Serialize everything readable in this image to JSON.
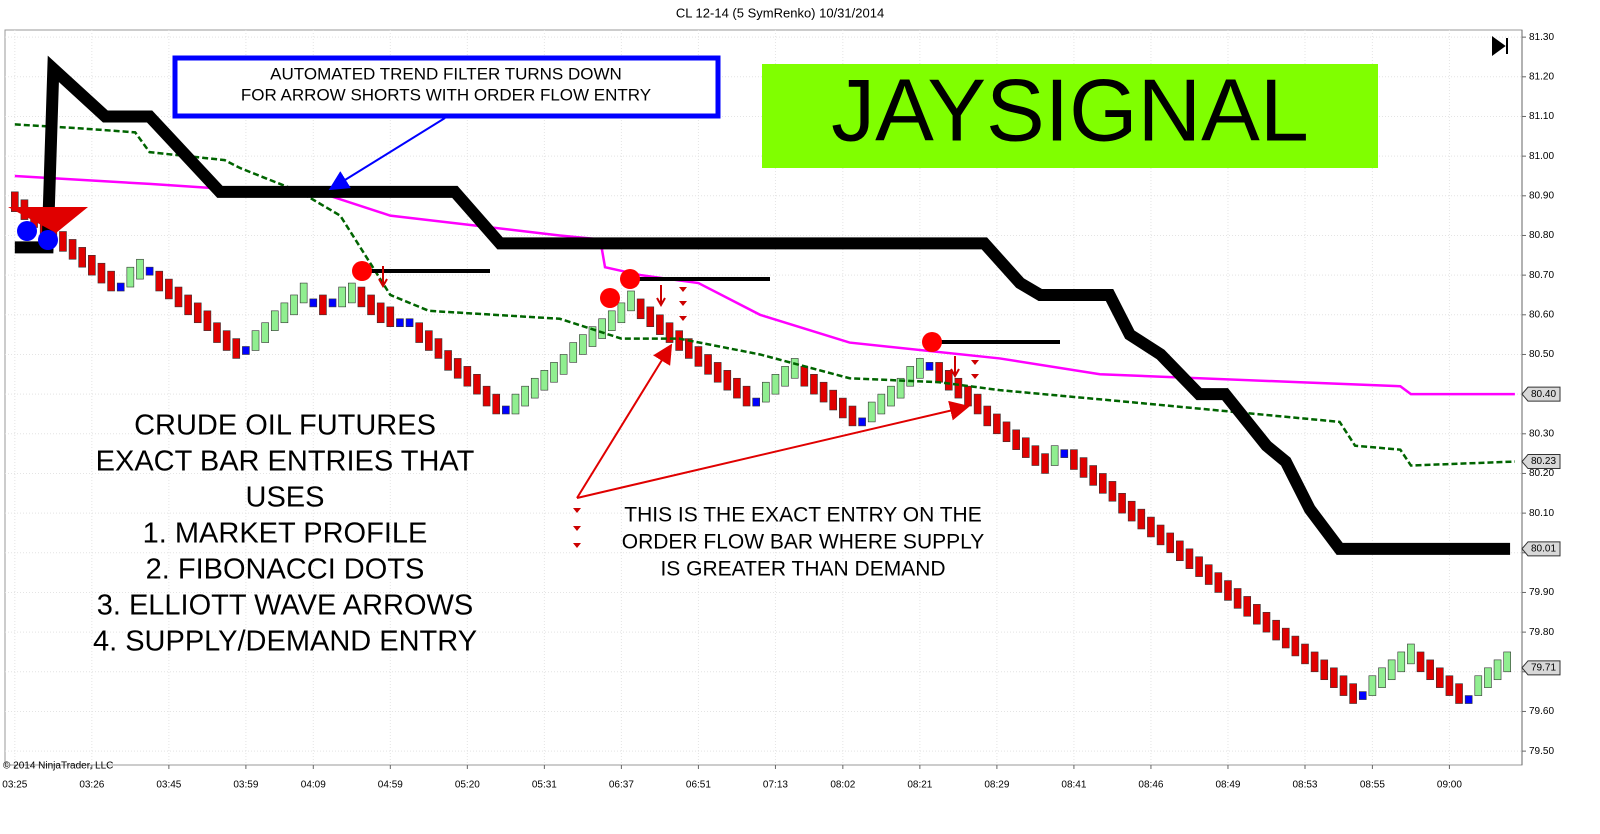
{
  "chart_data": {
    "type": "renko",
    "title": "CL 12-14 (5 SymRenko)  10/31/2014",
    "copyright": "© 2014 NinjaTrader, LLC",
    "annotations": {
      "trend_note": [
        "AUTOMATED TREND FILTER TURNS DOWN",
        "FOR ARROW SHORTS WITH ORDER FLOW ENTRY"
      ],
      "brand": "JAYSIGNAL",
      "left_note": [
        "CRUDE OIL FUTURES",
        "EXACT BAR ENTRIES THAT",
        "USES",
        "1. MARKET PROFILE",
        "2. FIBONACCI DOTS",
        "3. ELLIOTT WAVE ARROWS",
        "4. SUPPLY/DEMAND ENTRY"
      ],
      "entry_note": [
        "THIS IS THE EXACT ENTRY ON THE",
        "ORDER FLOW BAR WHERE SUPPLY",
        "IS GREATER THAN DEMAND"
      ]
    },
    "categories": [
      "03:25",
      null,
      null,
      null,
      null,
      null,
      null,
      null,
      "03:26",
      null,
      null,
      null,
      null,
      null,
      null,
      null,
      "03:45",
      null,
      null,
      null,
      null,
      null,
      null,
      null,
      "03:59",
      null,
      null,
      null,
      null,
      null,
      null,
      "04:09",
      null,
      null,
      null,
      null,
      null,
      null,
      null,
      "04:59",
      null,
      null,
      null,
      null,
      null,
      null,
      null,
      "05:20",
      null,
      null,
      null,
      null,
      null,
      null,
      null,
      "05:31",
      null,
      null,
      null,
      null,
      null,
      null,
      null,
      "06:37",
      null,
      null,
      null,
      null,
      null,
      null,
      null,
      "06:51",
      null,
      null,
      null,
      null,
      null,
      null,
      null,
      "07:13",
      null,
      null,
      null,
      null,
      null,
      null,
      "08:02",
      null,
      null,
      null,
      null,
      null,
      null,
      null,
      "08:21",
      null,
      null,
      null,
      null,
      null,
      null,
      null,
      "08:29",
      null,
      null,
      null,
      null,
      null,
      null,
      null,
      "08:41",
      null,
      null,
      null,
      null,
      null,
      null,
      null,
      "08:46",
      null,
      null,
      null,
      null,
      null,
      null,
      null,
      "08:49",
      null,
      null,
      null,
      null,
      null,
      null,
      null,
      "08:53",
      null,
      null,
      null,
      null,
      null,
      null,
      "08:55",
      null,
      null,
      null,
      null,
      null,
      null,
      null,
      "09:00",
      null,
      null,
      null,
      null,
      null,
      null
    ],
    "open": [
      80.91,
      80.89,
      80.87,
      80.85,
      80.83,
      80.81,
      80.79,
      80.77,
      80.75,
      80.73,
      80.71,
      80.67,
      80.67,
      80.69,
      80.71,
      80.71,
      80.69,
      80.67,
      80.65,
      80.63,
      80.61,
      80.58,
      80.56,
      80.54,
      80.51,
      80.51,
      80.53,
      80.56,
      80.58,
      80.6,
      80.63,
      80.63,
      80.65,
      80.63,
      80.62,
      80.63,
      80.67,
      80.65,
      80.63,
      80.62,
      80.58,
      80.58,
      80.58,
      80.56,
      80.54,
      80.51,
      80.49,
      80.47,
      80.45,
      80.42,
      80.4,
      80.36,
      80.35,
      80.37,
      80.39,
      80.41,
      80.43,
      80.45,
      80.48,
      80.5,
      80.52,
      80.54,
      80.56,
      80.58,
      80.61,
      80.64,
      80.62,
      80.6,
      80.58,
      80.56,
      80.54,
      80.52,
      80.5,
      80.48,
      80.46,
      80.44,
      80.42,
      80.38,
      80.38,
      80.4,
      80.42,
      80.44,
      80.47,
      80.45,
      80.43,
      80.41,
      80.39,
      80.37,
      80.33,
      80.33,
      80.35,
      80.37,
      80.39,
      80.42,
      80.44,
      80.47,
      80.48,
      80.46,
      80.44,
      80.42,
      80.4,
      80.37,
      80.35,
      80.33,
      80.31,
      80.29,
      80.27,
      80.25,
      80.22,
      80.25,
      80.26,
      80.24,
      80.22,
      80.2,
      80.18,
      80.15,
      80.13,
      80.11,
      80.09,
      80.07,
      80.05,
      80.03,
      80.01,
      79.99,
      79.97,
      79.95,
      79.93,
      79.91,
      79.89,
      79.87,
      79.85,
      79.83,
      79.81,
      79.79,
      79.77,
      79.75,
      79.73,
      79.71,
      79.69,
      79.67,
      79.64,
      79.64,
      79.66,
      79.68,
      79.7,
      79.72,
      79.75,
      79.73,
      79.71,
      79.69,
      79.67,
      79.63,
      79.64,
      79.66,
      79.68,
      79.7
    ],
    "close": [
      80.86,
      80.84,
      80.82,
      80.8,
      80.78,
      80.76,
      80.74,
      80.72,
      80.7,
      80.68,
      80.66,
      80.67,
      80.72,
      80.74,
      80.71,
      80.66,
      80.64,
      80.62,
      80.6,
      80.58,
      80.56,
      80.53,
      80.51,
      80.49,
      80.51,
      80.56,
      80.58,
      80.61,
      80.63,
      80.65,
      80.68,
      80.63,
      80.6,
      80.63,
      80.67,
      80.68,
      80.62,
      80.6,
      80.58,
      80.57,
      80.58,
      80.58,
      80.53,
      80.51,
      80.49,
      80.46,
      80.44,
      80.42,
      80.4,
      80.37,
      80.35,
      80.36,
      80.4,
      80.42,
      80.44,
      80.46,
      80.48,
      80.5,
      80.53,
      80.55,
      80.57,
      80.59,
      80.61,
      80.63,
      80.66,
      80.59,
      80.57,
      80.55,
      80.53,
      80.51,
      80.49,
      80.47,
      80.45,
      80.43,
      80.41,
      80.39,
      80.37,
      80.38,
      80.43,
      80.45,
      80.47,
      80.49,
      80.42,
      80.4,
      80.38,
      80.36,
      80.34,
      80.32,
      80.33,
      80.38,
      80.4,
      80.42,
      80.44,
      80.47,
      80.49,
      80.47,
      80.43,
      80.41,
      80.39,
      80.37,
      80.35,
      80.32,
      80.3,
      80.28,
      80.26,
      80.24,
      80.22,
      80.2,
      80.27,
      80.25,
      80.21,
      80.19,
      80.17,
      80.15,
      80.13,
      80.1,
      80.08,
      80.06,
      80.04,
      80.02,
      80.0,
      79.98,
      79.96,
      79.94,
      79.92,
      79.9,
      79.88,
      79.86,
      79.84,
      79.82,
      79.8,
      79.78,
      79.76,
      79.74,
      79.72,
      79.7,
      79.68,
      79.66,
      79.64,
      79.62,
      79.64,
      79.69,
      79.71,
      79.73,
      79.75,
      79.77,
      79.7,
      79.68,
      79.66,
      79.64,
      79.62,
      79.63,
      79.69,
      79.71,
      79.73,
      79.75
    ],
    "colors": {
      "down": "#e00000",
      "up": "#90ee90",
      "flat": "#0000ff"
    },
    "lines": [
      {
        "color": "#ff00ff",
        "x": [
          0,
          14,
          32.7,
          39,
          56.6,
          60.8,
          61.3,
          65,
          71,
          77.4,
          86.7,
          102.3,
          112.7,
          133.5,
          143.9,
          145,
          155.8
        ],
        "values": [
          80.95,
          80.93,
          80.9,
          80.85,
          80.8,
          80.79,
          80.72,
          80.7,
          80.68,
          80.6,
          80.53,
          80.49,
          80.45,
          80.43,
          80.42,
          80.4,
          80.4
        ]
      },
      {
        "color": "#006400",
        "dash": true,
        "x": [
          0,
          6.8,
          12.5,
          14,
          21.8,
          23.4,
          29.6,
          33.8,
          36.4,
          39,
          43,
          56.6,
          63,
          69,
          77.4,
          86.7,
          96,
          102.3,
          115.8,
          137.6,
          139.2,
          143.9,
          145,
          155.8
        ],
        "values": [
          81.08,
          81.07,
          81.06,
          81.01,
          80.99,
          80.97,
          80.91,
          80.85,
          80.75,
          80.65,
          80.61,
          80.59,
          80.54,
          80.54,
          80.5,
          80.44,
          80.43,
          80.41,
          80.38,
          80.33,
          80.27,
          80.26,
          80.22,
          80.23
        ]
      },
      {
        "color": "#000000",
        "heavy": true,
        "x": [
          0,
          3.4,
          4,
          9.4,
          14,
          21.3,
          45.7,
          50.4,
          100.7,
          104.4,
          106.5,
          113.7,
          115.8,
          119,
          123,
          125.7,
          130,
          132,
          134.5,
          137.6,
          155.3
        ],
        "values": [
          80.77,
          80.77,
          81.22,
          81.1,
          81.1,
          80.91,
          80.91,
          80.78,
          80.78,
          80.68,
          80.65,
          80.65,
          80.55,
          80.5,
          80.4,
          80.4,
          80.27,
          80.23,
          80.11,
          80.01,
          80.01
        ]
      }
    ],
    "price_tags": [
      {
        "value": 80.4,
        "label": "80.40"
      },
      {
        "value": 80.23,
        "label": "80.23"
      },
      {
        "value": 80.01,
        "label": "80.01"
      },
      {
        "value": 79.71,
        "label": "79.71"
      }
    ],
    "ylim": [
      79.465,
      81.318
    ],
    "yticks": [
      {
        "value": 81.3,
        "label": "81.30"
      },
      {
        "value": 81.2,
        "label": "81.20"
      },
      {
        "value": 81.1,
        "label": "81.10"
      },
      {
        "value": 81,
        "label": "81.00"
      },
      {
        "value": 80.9,
        "label": "80.90"
      },
      {
        "value": 80.8,
        "label": "80.80"
      },
      {
        "value": 80.7,
        "label": "80.70"
      },
      {
        "value": 80.6,
        "label": "80.60"
      },
      {
        "value": 80.5,
        "label": "80.50"
      },
      {
        "value": 80.4,
        "label": "80.40"
      },
      {
        "value": 80.3,
        "label": "80.30"
      },
      {
        "value": 80.2,
        "label": "80.20"
      },
      {
        "value": 80.1,
        "label": "80.10"
      },
      {
        "value": 80,
        "label": "80.00"
      },
      {
        "value": 79.9,
        "label": "79.90"
      },
      {
        "value": 79.8,
        "label": "79.80"
      },
      {
        "value": 79.7,
        "label": "79.70"
      },
      {
        "value": 79.6,
        "label": "79.60"
      },
      {
        "value": 79.5,
        "label": "79.50"
      }
    ],
    "grid": true
  }
}
